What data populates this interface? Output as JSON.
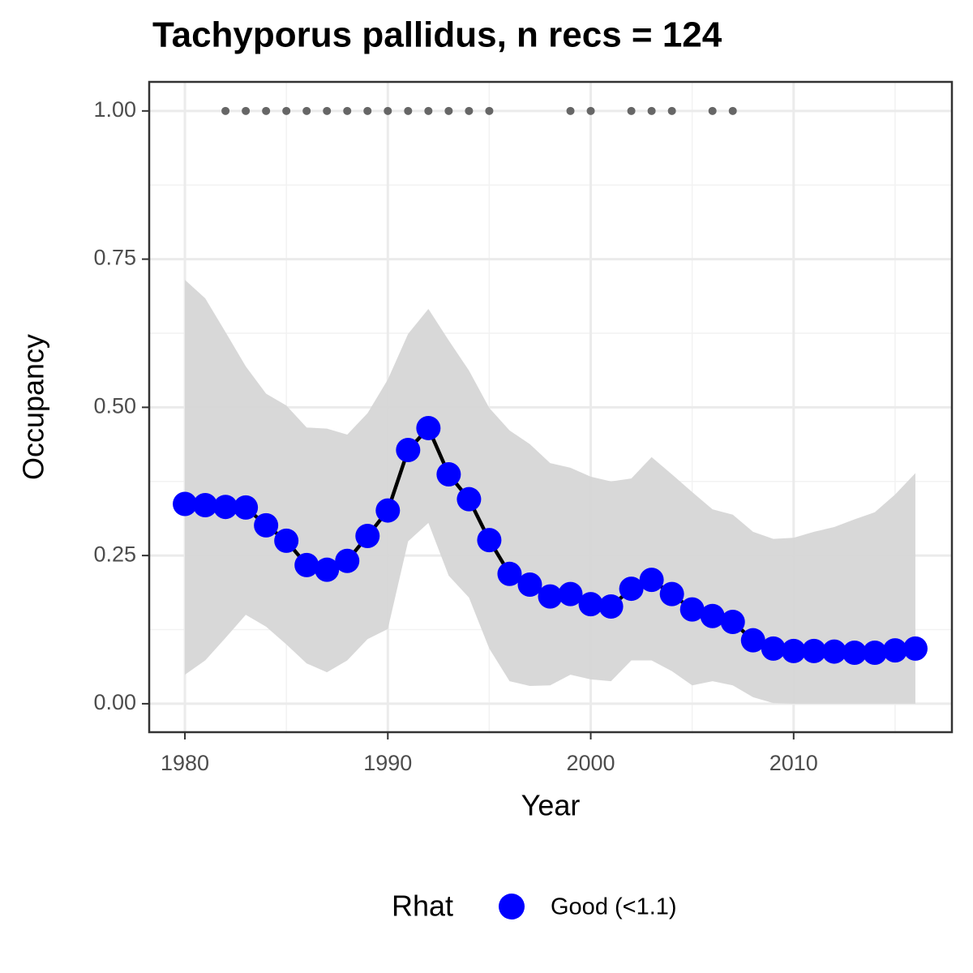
{
  "chart_data": {
    "type": "line",
    "title": "Tachyporus pallidus, n recs = 124",
    "x_label": "Year",
    "y_label": "Occupancy",
    "x": [
      1980,
      1981,
      1982,
      1983,
      1984,
      1985,
      1986,
      1987,
      1988,
      1989,
      1990,
      1991,
      1992,
      1993,
      1994,
      1995,
      1996,
      1997,
      1998,
      1999,
      2000,
      2001,
      2002,
      2003,
      2004,
      2005,
      2006,
      2007,
      2008,
      2009,
      2010,
      2011,
      2012,
      2013,
      2014,
      2015,
      2016
    ],
    "series": [
      {
        "name": "Good (<1.1)",
        "color": "#0000ff",
        "values": [
          0.337,
          0.335,
          0.332,
          0.331,
          0.301,
          0.275,
          0.234,
          0.226,
          0.241,
          0.283,
          0.326,
          0.428,
          0.465,
          0.387,
          0.345,
          0.276,
          0.219,
          0.201,
          0.181,
          0.185,
          0.168,
          0.164,
          0.194,
          0.209,
          0.185,
          0.159,
          0.148,
          0.138,
          0.107,
          0.093,
          0.089,
          0.089,
          0.088,
          0.086,
          0.086,
          0.09,
          0.093
        ]
      }
    ],
    "line_color": "#000000",
    "ribbon": {
      "color": "#d6d6d6",
      "lower": [
        0.049,
        0.073,
        0.111,
        0.15,
        0.13,
        0.1,
        0.068,
        0.053,
        0.073,
        0.109,
        0.126,
        0.274,
        0.305,
        0.216,
        0.179,
        0.093,
        0.038,
        0.03,
        0.031,
        0.049,
        0.041,
        0.038,
        0.073,
        0.073,
        0.055,
        0.031,
        0.038,
        0.031,
        0.011,
        0.001,
        0,
        0,
        0,
        0,
        0,
        0,
        0
      ],
      "upper": [
        0.715,
        0.684,
        0.627,
        0.569,
        0.523,
        0.503,
        0.466,
        0.464,
        0.454,
        0.49,
        0.547,
        0.624,
        0.666,
        0.613,
        0.562,
        0.499,
        0.461,
        0.438,
        0.406,
        0.398,
        0.383,
        0.375,
        0.38,
        0.416,
        0.387,
        0.357,
        0.328,
        0.319,
        0.29,
        0.278,
        0.28,
        0.29,
        0.298,
        0.311,
        0.323,
        0.353,
        0.389
      ]
    },
    "records": {
      "color": "#666666",
      "x": [
        1982,
        1983,
        1984,
        1985,
        1986,
        1987,
        1988,
        1989,
        1990,
        1991,
        1992,
        1993,
        1994,
        1995,
        1999,
        2000,
        2002,
        2003,
        2004,
        2006,
        2007
      ],
      "values": [
        1,
        1,
        1,
        1,
        1,
        1,
        1,
        1,
        1,
        1,
        1,
        1,
        1,
        1,
        1,
        1,
        1,
        1,
        1,
        1,
        1
      ]
    },
    "legend_title": "Rhat",
    "legend": "bottom",
    "xlim": [
      1978.24,
      2017.8
    ],
    "ylim": [
      -0.048,
      1.049
    ],
    "xticks": [
      1980,
      1990,
      2000,
      2010
    ],
    "yticks": [
      {
        "value": 0,
        "label": "0.00"
      },
      {
        "value": 0.25,
        "label": "0.25"
      },
      {
        "value": 0.5,
        "label": "0.50"
      },
      {
        "value": 0.75,
        "label": "0.75"
      },
      {
        "value": 1,
        "label": "1.00"
      }
    ],
    "grid": true
  }
}
